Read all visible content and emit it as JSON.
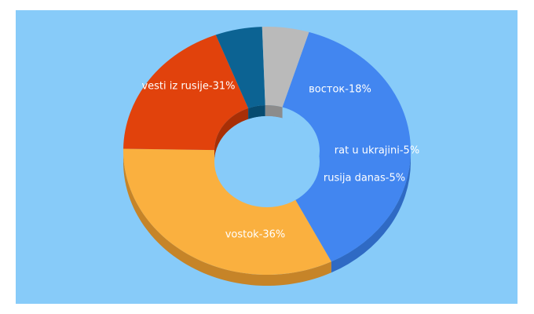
{
  "chart_data": {
    "type": "pie",
    "style": "3d-donut",
    "background": "#87CBF9",
    "slices": [
      {
        "label": "vostok",
        "value": 36,
        "display": "vostok-36%",
        "color": "#4286F0",
        "side": "#2F6AC4"
      },
      {
        "label": "vesti iz rusije",
        "value": 31,
        "display": "vesti iz rusije-31%",
        "color": "#FAB03F",
        "side": "#C68428"
      },
      {
        "label": "восток",
        "value": 18,
        "display": "восток-18%",
        "color": "#E1420C",
        "side": "#A82F06"
      },
      {
        "label": "rat u ukrajini",
        "value": 5,
        "display": "rat u ukrajini-5%",
        "color": "#0C6393",
        "side": "#074B70"
      },
      {
        "label": "rusija danas",
        "value": 5,
        "display": "rusija danas-5%",
        "color": "#BABABA",
        "side": "#8C8C8C"
      }
    ]
  }
}
